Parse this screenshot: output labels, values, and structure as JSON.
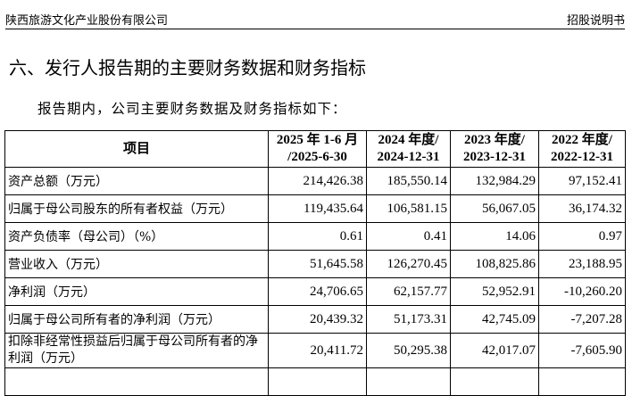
{
  "header": {
    "company": "陕西旅游文化产业股份有限公司",
    "doc_type": "招股说明书"
  },
  "section_title": "六、发行人报告期的主要财务数据和财务指标",
  "intro": "报告期内，公司主要财务数据及财务指标如下：",
  "table": {
    "columns": [
      "项目",
      "2025 年 1-6 月 /2025-6-30",
      "2024 年度/ 2024-12-31",
      "2023 年度/ 2023-12-31",
      "2022 年度/ 2022-12-31"
    ],
    "column_lines": [
      [
        "项目",
        ""
      ],
      [
        "2025 年 1-6 月",
        "/2025-6-30"
      ],
      [
        "2024 年度/",
        "2024-12-31"
      ],
      [
        "2023 年度/",
        "2023-12-31"
      ],
      [
        "2022 年度/",
        "2022-12-31"
      ]
    ],
    "rows": [
      {
        "label": "资产总额（万元）",
        "values": [
          "214,426.38",
          "185,550.14",
          "132,984.29",
          "97,152.41"
        ]
      },
      {
        "label": "归属于母公司股东的所有者权益（万元）",
        "values": [
          "119,435.64",
          "106,581.15",
          "56,067.05",
          "36,174.32"
        ]
      },
      {
        "label": "资产负债率（母公司）（%）",
        "values": [
          "0.61",
          "0.41",
          "14.06",
          "0.97"
        ]
      },
      {
        "label": "营业收入（万元）",
        "values": [
          "51,645.58",
          "126,270.45",
          "108,825.86",
          "23,188.95"
        ]
      },
      {
        "label": "净利润（万元）",
        "values": [
          "24,706.65",
          "62,157.77",
          "52,952.91",
          "-10,260.20"
        ]
      },
      {
        "label": "归属于母公司所有者的净利润（万元）",
        "values": [
          "20,439.32",
          "51,173.31",
          "42,745.09",
          "-7,207.28"
        ]
      },
      {
        "label": "扣除非经常性损益后归属于母公司所有者的净利润（万元）",
        "values": [
          "20,411.72",
          "50,295.38",
          "42,017.07",
          "-7,605.90"
        ]
      }
    ]
  }
}
